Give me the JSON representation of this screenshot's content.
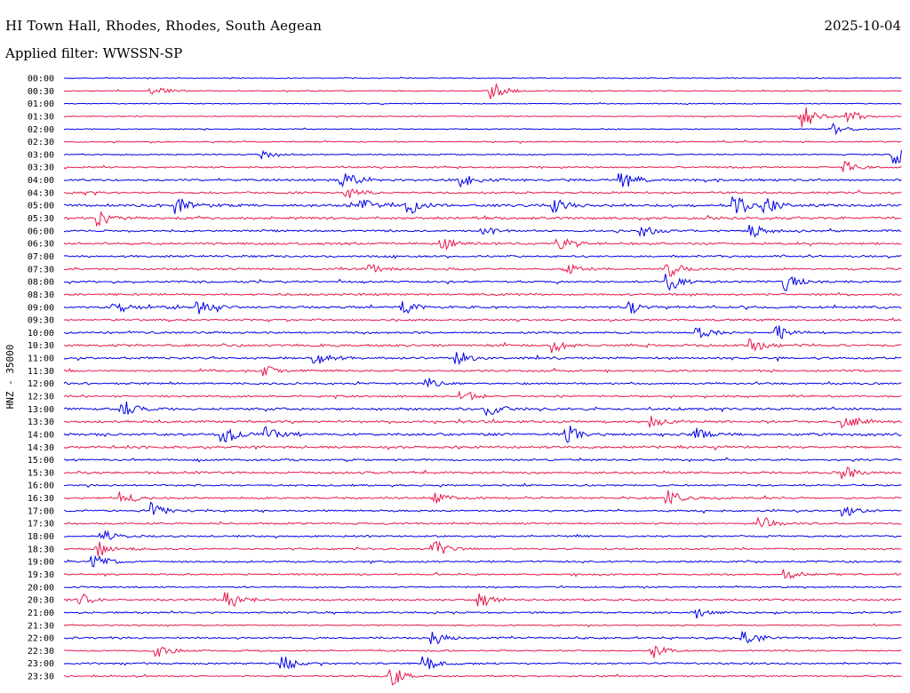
{
  "header": {
    "title": "HI Town Hall, Rhodes, Rhodes, South Aegean",
    "date": "2025-10-04",
    "filter": "Applied filter: WWSSN-SP"
  },
  "chart_data": {
    "type": "line",
    "title": "HI Town Hall, Rhodes, Rhodes, South Aegean",
    "subtitle": "Applied filter: WWSSN-SP",
    "date": "2025-10-04",
    "ylabel": "HNZ - 35000",
    "xlabel": "",
    "grid": false,
    "colors": [
      "#0000e6",
      "#e6194b"
    ],
    "row_labels": [
      "00:00",
      "00:30",
      "01:00",
      "01:30",
      "02:00",
      "02:30",
      "03:00",
      "03:30",
      "04:00",
      "04:30",
      "05:00",
      "05:30",
      "06:00",
      "06:30",
      "07:00",
      "07:30",
      "08:00",
      "08:30",
      "09:00",
      "09:30",
      "10:00",
      "10:30",
      "11:00",
      "11:30",
      "12:00",
      "12:30",
      "13:00",
      "13:30",
      "14:00",
      "14:30",
      "15:00",
      "15:30",
      "16:00",
      "16:30",
      "17:00",
      "17:30",
      "18:00",
      "18:30",
      "19:00",
      "19:30",
      "20:00",
      "20:30",
      "21:00",
      "21:30",
      "22:00",
      "22:30",
      "23:00",
      "23:30"
    ],
    "noise_level": [
      0.4,
      0.5,
      0.5,
      0.5,
      0.5,
      0.6,
      0.6,
      0.7,
      1.0,
      0.9,
      1.2,
      1.2,
      0.9,
      1.0,
      0.9,
      0.9,
      0.9,
      0.9,
      1.0,
      0.9,
      0.9,
      1.1,
      1.0,
      0.9,
      0.9,
      0.9,
      1.1,
      1.1,
      1.2,
      1.1,
      0.9,
      1.0,
      0.8,
      0.9,
      0.8,
      0.8,
      0.8,
      0.8,
      0.8,
      0.8,
      0.7,
      0.9,
      0.8,
      0.6,
      0.8,
      0.7,
      0.8,
      0.7
    ],
    "events": [
      {
        "row": 1,
        "x": 0.51,
        "a": 10
      },
      {
        "row": 1,
        "x": 0.105,
        "a": 5
      },
      {
        "row": 3,
        "x": 0.88,
        "a": 14
      },
      {
        "row": 3,
        "x": 0.935,
        "a": 6
      },
      {
        "row": 4,
        "x": 0.915,
        "a": 6
      },
      {
        "row": 6,
        "x": 0.99,
        "a": 10
      },
      {
        "row": 6,
        "x": 0.235,
        "a": 4
      },
      {
        "row": 7,
        "x": 0.93,
        "a": 6
      },
      {
        "row": 8,
        "x": 0.33,
        "a": 10
      },
      {
        "row": 8,
        "x": 0.475,
        "a": 7
      },
      {
        "row": 8,
        "x": 0.665,
        "a": 9
      },
      {
        "row": 9,
        "x": 0.335,
        "a": 8
      },
      {
        "row": 10,
        "x": 0.135,
        "a": 9
      },
      {
        "row": 10,
        "x": 0.355,
        "a": 8
      },
      {
        "row": 10,
        "x": 0.41,
        "a": 9
      },
      {
        "row": 10,
        "x": 0.585,
        "a": 8
      },
      {
        "row": 10,
        "x": 0.8,
        "a": 9
      },
      {
        "row": 10,
        "x": 0.835,
        "a": 8
      },
      {
        "row": 11,
        "x": 0.04,
        "a": 8
      },
      {
        "row": 12,
        "x": 0.5,
        "a": 5
      },
      {
        "row": 12,
        "x": 0.69,
        "a": 6
      },
      {
        "row": 12,
        "x": 0.82,
        "a": 7
      },
      {
        "row": 13,
        "x": 0.45,
        "a": 6
      },
      {
        "row": 13,
        "x": 0.59,
        "a": 6
      },
      {
        "row": 15,
        "x": 0.72,
        "a": 8
      },
      {
        "row": 15,
        "x": 0.365,
        "a": 5
      },
      {
        "row": 15,
        "x": 0.6,
        "a": 5
      },
      {
        "row": 16,
        "x": 0.72,
        "a": 10
      },
      {
        "row": 16,
        "x": 0.86,
        "a": 9
      },
      {
        "row": 18,
        "x": 0.06,
        "a": 7
      },
      {
        "row": 18,
        "x": 0.16,
        "a": 10
      },
      {
        "row": 18,
        "x": 0.405,
        "a": 6
      },
      {
        "row": 18,
        "x": 0.675,
        "a": 6
      },
      {
        "row": 20,
        "x": 0.755,
        "a": 7
      },
      {
        "row": 20,
        "x": 0.85,
        "a": 8
      },
      {
        "row": 21,
        "x": 0.585,
        "a": 6
      },
      {
        "row": 21,
        "x": 0.82,
        "a": 7
      },
      {
        "row": 22,
        "x": 0.3,
        "a": 6
      },
      {
        "row": 22,
        "x": 0.47,
        "a": 7
      },
      {
        "row": 23,
        "x": 0.24,
        "a": 6
      },
      {
        "row": 24,
        "x": 0.43,
        "a": 6
      },
      {
        "row": 25,
        "x": 0.475,
        "a": 6
      },
      {
        "row": 26,
        "x": 0.07,
        "a": 9
      },
      {
        "row": 26,
        "x": 0.505,
        "a": 7
      },
      {
        "row": 27,
        "x": 0.93,
        "a": 8
      },
      {
        "row": 27,
        "x": 0.7,
        "a": 6
      },
      {
        "row": 28,
        "x": 0.19,
        "a": 9
      },
      {
        "row": 28,
        "x": 0.24,
        "a": 8
      },
      {
        "row": 28,
        "x": 0.6,
        "a": 9
      },
      {
        "row": 28,
        "x": 0.75,
        "a": 9
      },
      {
        "row": 31,
        "x": 0.93,
        "a": 8
      },
      {
        "row": 33,
        "x": 0.07,
        "a": 7
      },
      {
        "row": 33,
        "x": 0.44,
        "a": 6
      },
      {
        "row": 33,
        "x": 0.72,
        "a": 8
      },
      {
        "row": 34,
        "x": 0.105,
        "a": 9
      },
      {
        "row": 34,
        "x": 0.93,
        "a": 6
      },
      {
        "row": 35,
        "x": 0.83,
        "a": 7
      },
      {
        "row": 36,
        "x": 0.045,
        "a": 6
      },
      {
        "row": 37,
        "x": 0.44,
        "a": 9
      },
      {
        "row": 37,
        "x": 0.04,
        "a": 9
      },
      {
        "row": 38,
        "x": 0.035,
        "a": 7
      },
      {
        "row": 39,
        "x": 0.86,
        "a": 6
      },
      {
        "row": 41,
        "x": 0.195,
        "a": 10
      },
      {
        "row": 41,
        "x": 0.495,
        "a": 8
      },
      {
        "row": 41,
        "x": 0.02,
        "a": 6
      },
      {
        "row": 42,
        "x": 0.75,
        "a": 7
      },
      {
        "row": 44,
        "x": 0.44,
        "a": 7
      },
      {
        "row": 44,
        "x": 0.81,
        "a": 9
      },
      {
        "row": 45,
        "x": 0.11,
        "a": 7
      },
      {
        "row": 45,
        "x": 0.7,
        "a": 9
      },
      {
        "row": 46,
        "x": 0.26,
        "a": 8
      },
      {
        "row": 46,
        "x": 0.43,
        "a": 7
      },
      {
        "row": 47,
        "x": 0.39,
        "a": 9
      }
    ]
  }
}
